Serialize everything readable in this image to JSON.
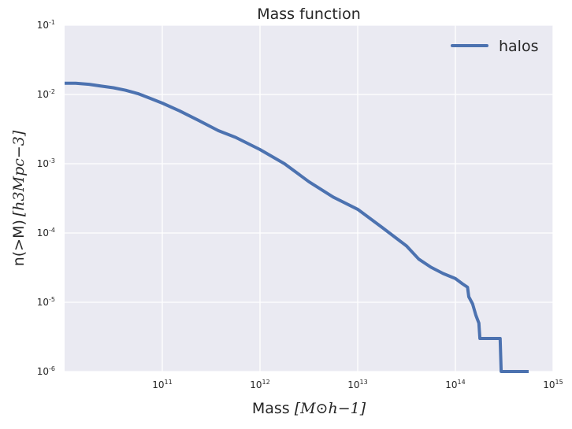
{
  "chart_data": {
    "type": "line",
    "title": "Mass function",
    "xlabel": {
      "text": "Mass",
      "math": "[M⊙h−1]"
    },
    "ylabel": {
      "text": "n(>M)",
      "math": "[h3Mpc−3]"
    },
    "x_scale": "log",
    "y_scale": "log",
    "xlim": [
      10000000000.0,
      1000000000000000.0
    ],
    "ylim": [
      1e-06,
      0.1
    ],
    "x_ticks": [
      {
        "base": "10",
        "exp": "11",
        "value": 100000000000.0
      },
      {
        "base": "10",
        "exp": "12",
        "value": 1000000000000.0
      },
      {
        "base": "10",
        "exp": "13",
        "value": 10000000000000.0
      },
      {
        "base": "10",
        "exp": "14",
        "value": 100000000000000.0
      },
      {
        "base": "10",
        "exp": "15",
        "value": 1000000000000000.0
      }
    ],
    "y_ticks": [
      {
        "base": "10",
        "exp": "-1",
        "value": 0.1
      },
      {
        "base": "10",
        "exp": "-2",
        "value": 0.01
      },
      {
        "base": "10",
        "exp": "-3",
        "value": 0.001
      },
      {
        "base": "10",
        "exp": "-4",
        "value": 0.0001
      },
      {
        "base": "10",
        "exp": "-5",
        "value": 1e-05
      },
      {
        "base": "10",
        "exp": "-6",
        "value": 1e-06
      }
    ],
    "grid": true,
    "legend_position": "top-right",
    "series": [
      {
        "name": "halos",
        "color": "#4c72b0",
        "x": [
          10000000000.0,
          13000000000.0,
          17800000000.0,
          23700000000.0,
          31600000000.0,
          42200000000.0,
          56200000000.0,
          75000000000.0,
          100000000000.0,
          150000000000.0,
          237000000000.0,
          375000000000.0,
          562000000000.0,
          1000000000000.0,
          1780000000000.0,
          3160000000000.0,
          5620000000000.0,
          10000000000000.0,
          17800000000000.0,
          31600000000000.0,
          42200000000000.0,
          56200000000000.0,
          75000000000000.0,
          100000000000000.0,
          118000000000000.0,
          133000000000000.0,
          137000000000000.0,
          150000000000000.0,
          162000000000000.0,
          174000000000000.0,
          178000000000000.0,
          205000000000000.0,
          287000000000000.0,
          294000000000000.0,
          301000000000000.0,
          562000000000000.0
        ],
        "y": [
          0.0145,
          0.0145,
          0.014,
          0.0132,
          0.0125,
          0.0115,
          0.0103,
          0.0088,
          0.0075,
          0.0058,
          0.0042,
          0.003,
          0.0024,
          0.0016,
          0.001,
          0.00055,
          0.00033,
          0.00022,
          0.00012,
          6.5e-05,
          4.2e-05,
          3.2e-05,
          2.6e-05,
          2.2e-05,
          1.85e-05,
          1.65e-05,
          1.2e-05,
          9.5e-06,
          6.5e-06,
          5e-06,
          3e-06,
          3e-06,
          3e-06,
          1e-06,
          1e-06,
          1e-06
        ]
      }
    ]
  }
}
